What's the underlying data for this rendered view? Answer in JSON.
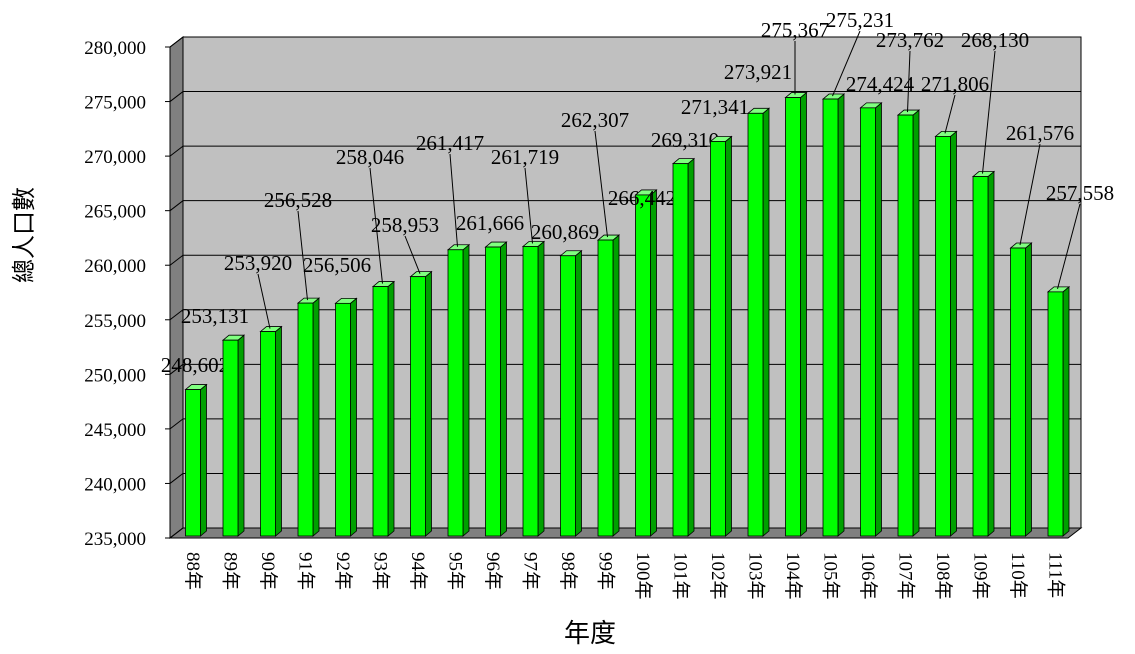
{
  "chart_data": {
    "type": "bar",
    "y_label": "總人口數",
    "x_label": "年度",
    "categories": [
      "88年",
      "89年",
      "90年",
      "91年",
      "92年",
      "93年",
      "94年",
      "95年",
      "96年",
      "97年",
      "98年",
      "99年",
      "100年",
      "101年",
      "102年",
      "103年",
      "104年",
      "105年",
      "106年",
      "107年",
      "108年",
      "109年",
      "110年",
      "111年"
    ],
    "values": [
      248602,
      253131,
      253920,
      256528,
      256506,
      258046,
      258953,
      261417,
      261666,
      261719,
      260869,
      262307,
      266442,
      269310,
      271341,
      273921,
      275367,
      275231,
      274424,
      273762,
      271806,
      268130,
      261576,
      257558
    ],
    "value_labels": [
      "248,602",
      "253,131",
      "253,920",
      "256,528",
      "256,506",
      "258,046",
      "258,953",
      "261,417",
      "261,666",
      "261,719",
      "260,869",
      "262,307",
      "266,442",
      "269,310",
      "271,341",
      "273,921",
      "275,367",
      "275,231",
      "274,424",
      "273,762",
      "271,806",
      "268,130",
      "261,576",
      "257,558"
    ],
    "color": "#00ff00",
    "ylim": [
      235000,
      280000
    ],
    "yticks": [
      {
        "value": 235000,
        "label": "235,000"
      },
      {
        "value": 240000,
        "label": "240,000"
      },
      {
        "value": 245000,
        "label": "245,000"
      },
      {
        "value": 250000,
        "label": "250,000"
      },
      {
        "value": 255000,
        "label": "255,000"
      },
      {
        "value": 260000,
        "label": "260,000"
      },
      {
        "value": 265000,
        "label": "265,000"
      },
      {
        "value": 270000,
        "label": "270,000"
      },
      {
        "value": 275000,
        "label": "275,000"
      },
      {
        "value": 280000,
        "label": "280,000"
      }
    ],
    "grid": true
  }
}
